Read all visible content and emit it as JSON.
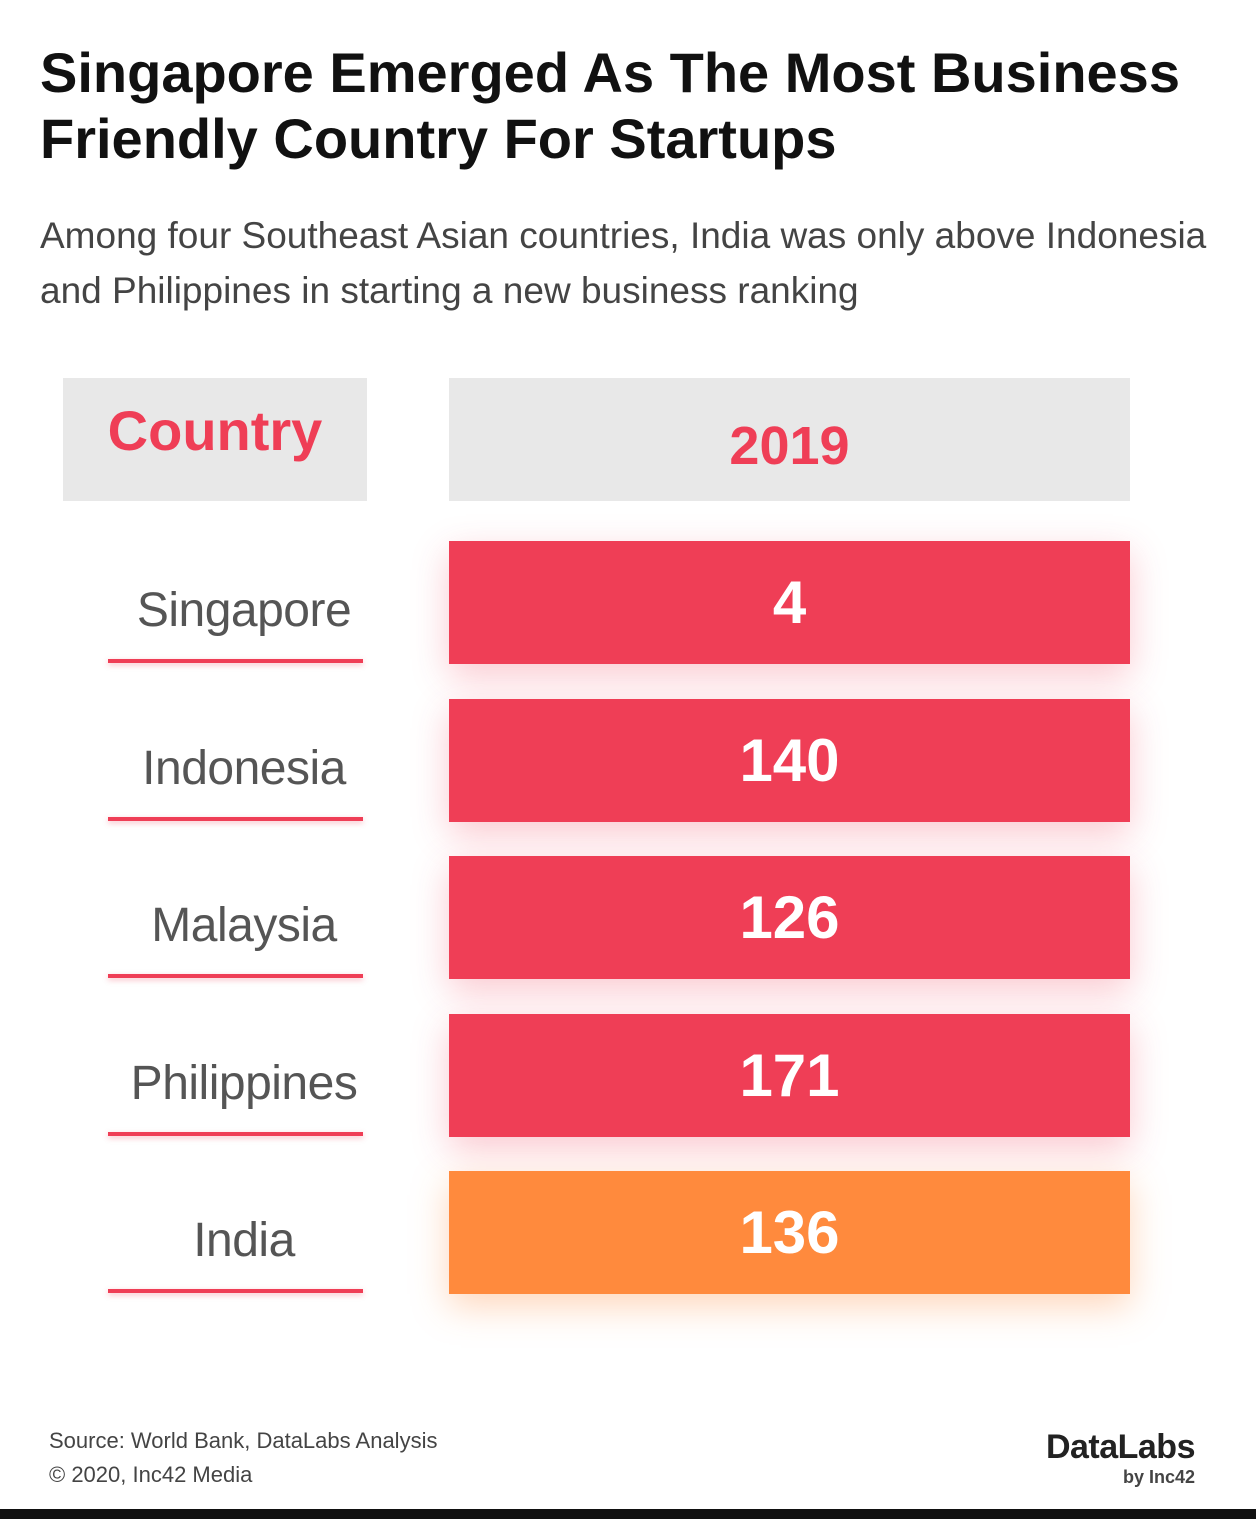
{
  "title": "Singapore Emerged As The Most Business Friendly Country For Startups",
  "subtitle": "Among four Southeast Asian countries, India was only above Indonesia and Philippines in starting a new business ranking",
  "header": {
    "country_label": "Country",
    "year_label": "2019"
  },
  "colors": {
    "accent": "#ef3e56",
    "highlight": "#ff8a3d",
    "header_bg": "#e8e8e8"
  },
  "chart_data": {
    "type": "table",
    "title": "Singapore Emerged As The Most Business Friendly Country For Startups",
    "subtitle": "Among four Southeast Asian countries, India was only above Indonesia and Philippines in starting a new business ranking",
    "columns": [
      "Country",
      "2019"
    ],
    "rows": [
      {
        "country": "Singapore",
        "value": "4",
        "highlight": false
      },
      {
        "country": "Indonesia",
        "value": "140",
        "highlight": false
      },
      {
        "country": "Malaysia",
        "value": "126",
        "highlight": false
      },
      {
        "country": "Philippines",
        "value": "171",
        "highlight": false
      },
      {
        "country": "India",
        "value": "136",
        "highlight": true
      }
    ]
  },
  "footer": {
    "source": "Source: World Bank, DataLabs Analysis",
    "copyright": "© 2020, Inc42 Media"
  },
  "logo": {
    "name": "DataLabs",
    "by": "by Inc42"
  }
}
